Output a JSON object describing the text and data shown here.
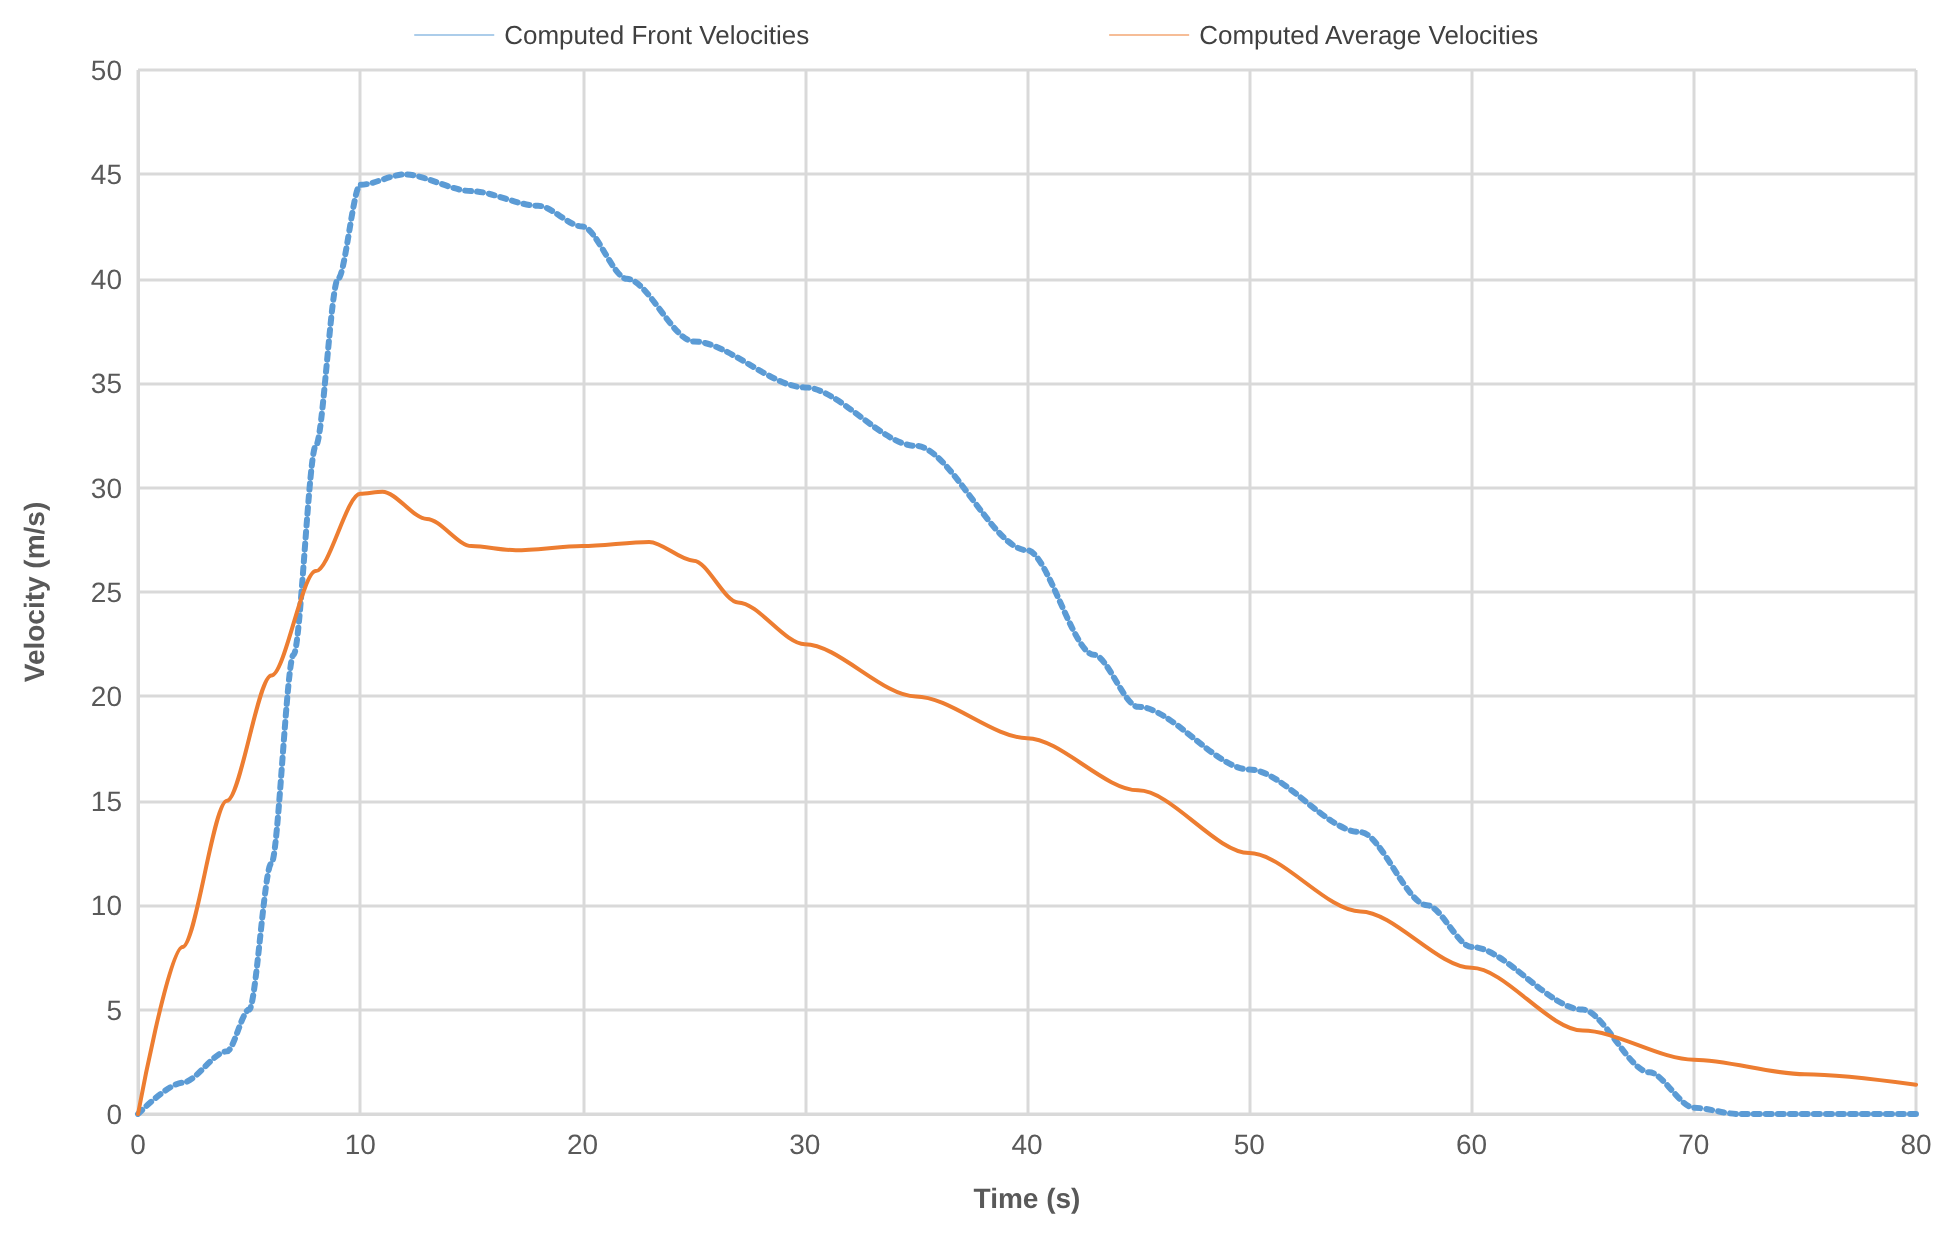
{
  "chart_data": {
    "type": "line",
    "xlabel": "Time (s)",
    "ylabel": "Velocity (m/s)",
    "xlim": [
      0,
      80
    ],
    "xticks": [
      0,
      10,
      20,
      30,
      40,
      50,
      60,
      70,
      80
    ],
    "ylim": [
      0,
      50
    ],
    "yticks": [
      0,
      5,
      10,
      15,
      20,
      25,
      30,
      35,
      40,
      45,
      50
    ],
    "grid": true,
    "legend": "top",
    "marker": "none",
    "series": [
      {
        "name": "Computed Front Velocities",
        "color": "#5b9bd5",
        "line_style": "dotted",
        "x": [
          0,
          2,
          4,
          5,
          6,
          7,
          8,
          9,
          10,
          12,
          15,
          18,
          20,
          22,
          25,
          30,
          35,
          40,
          43,
          45,
          50,
          55,
          58,
          60,
          65,
          68,
          70,
          72,
          80
        ],
        "values": [
          0,
          1.5,
          3,
          5,
          12,
          22,
          32,
          40,
          44.5,
          45,
          44.2,
          43.5,
          42.5,
          40,
          37,
          34.8,
          32,
          27,
          22,
          19.5,
          16.5,
          13.5,
          10,
          8,
          5,
          2,
          0.3,
          0,
          0
        ]
      },
      {
        "name": "Computed Average Velocities",
        "color": "#ed7d31",
        "line_style": "solid",
        "x": [
          0,
          2,
          4,
          6,
          8,
          10,
          11,
          13,
          15,
          17,
          20,
          23,
          25,
          27,
          30,
          35,
          40,
          45,
          50,
          55,
          60,
          65,
          70,
          75,
          80
        ],
        "values": [
          0,
          8,
          15,
          21,
          26,
          29.7,
          29.8,
          28.5,
          27.2,
          27,
          27.2,
          27.4,
          26.5,
          24.5,
          22.5,
          20,
          18,
          15.5,
          12.5,
          9.7,
          7,
          4,
          2.6,
          1.9,
          1.4
        ]
      }
    ]
  }
}
